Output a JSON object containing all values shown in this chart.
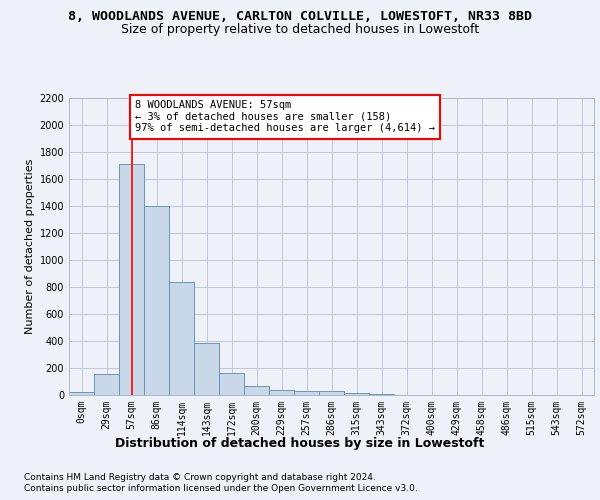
{
  "title1": "8, WOODLANDS AVENUE, CARLTON COLVILLE, LOWESTOFT, NR33 8BD",
  "title2": "Size of property relative to detached houses in Lowestoft",
  "xlabel": "Distribution of detached houses by size in Lowestoft",
  "ylabel": "Number of detached properties",
  "bar_values": [
    20,
    155,
    1710,
    1395,
    835,
    385,
    165,
    65,
    38,
    30,
    28,
    18,
    5,
    2,
    1,
    0,
    0,
    0,
    0,
    0,
    0
  ],
  "x_labels": [
    "0sqm",
    "29sqm",
    "57sqm",
    "86sqm",
    "114sqm",
    "143sqm",
    "172sqm",
    "200sqm",
    "229sqm",
    "257sqm",
    "286sqm",
    "315sqm",
    "343sqm",
    "372sqm",
    "400sqm",
    "429sqm",
    "458sqm",
    "486sqm",
    "515sqm",
    "543sqm",
    "572sqm"
  ],
  "bar_color": "#c8d8e8",
  "bar_edge_color": "#5a8ab0",
  "grid_color": "#c0c8d8",
  "background_color": "#eef2f8",
  "redline_index": 2,
  "annotation_text": "8 WOODLANDS AVENUE: 57sqm\n← 3% of detached houses are smaller (158)\n97% of semi-detached houses are larger (4,614) →",
  "annotation_box_color": "white",
  "annotation_box_edge": "red",
  "redline_color": "red",
  "ylim": [
    0,
    2200
  ],
  "yticks": [
    0,
    200,
    400,
    600,
    800,
    1000,
    1200,
    1400,
    1600,
    1800,
    2000,
    2200
  ],
  "footer1": "Contains HM Land Registry data © Crown copyright and database right 2024.",
  "footer2": "Contains public sector information licensed under the Open Government Licence v3.0.",
  "title1_fontsize": 9.5,
  "title2_fontsize": 9,
  "ylabel_fontsize": 8,
  "xlabel_fontsize": 9,
  "tick_fontsize": 7,
  "annotation_fontsize": 7.5,
  "footer_fontsize": 6.5
}
